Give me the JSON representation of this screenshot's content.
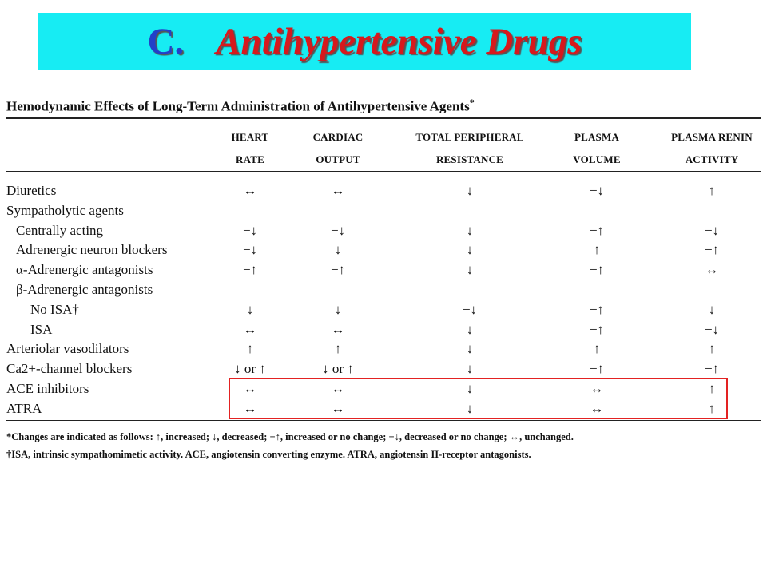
{
  "slide": {
    "title_letter": "C.",
    "title_text": "Antihypertensive Drugs"
  },
  "table": {
    "title": "Hemodynamic Effects of Long-Term Administration of Antihypertensive Agents",
    "title_mark": "*",
    "headers": [
      {
        "line1": "HEART",
        "line2": "RATE"
      },
      {
        "line1": "CARDIAC",
        "line2": "OUTPUT"
      },
      {
        "line1": "TOTAL PERIPHERAL",
        "line2": "RESISTANCE"
      },
      {
        "line1": "PLASMA",
        "line2": "VOLUME"
      },
      {
        "line1": "PLASMA RENIN",
        "line2": "ACTIVITY"
      }
    ],
    "rows": [
      {
        "label": "Diuretics",
        "values": [
          "↔",
          "↔",
          "↓",
          "−↓",
          "↑"
        ]
      },
      {
        "label": "Sympatholytic agents",
        "values": [
          "",
          "",
          "",
          "",
          ""
        ]
      },
      {
        "label": "Centrally acting",
        "values": [
          "−↓",
          "−↓",
          "↓",
          "−↑",
          "−↓"
        ]
      },
      {
        "label": "Adrenergic neuron blockers",
        "values": [
          "−↓",
          "↓",
          "↓",
          "↑",
          "−↑"
        ]
      },
      {
        "label": "α-Adrenergic antagonists",
        "values": [
          "−↑",
          "−↑",
          "↓",
          "−↑",
          "↔"
        ]
      },
      {
        "label": "β-Adrenergic antagonists",
        "values": [
          "",
          "",
          "",
          "",
          ""
        ]
      },
      {
        "label": "No ISA†",
        "values": [
          "↓",
          "↓",
          "−↓",
          "−↑",
          "↓"
        ]
      },
      {
        "label": "ISA",
        "values": [
          "↔",
          "↔",
          "↓",
          "−↑",
          "−↓"
        ]
      },
      {
        "label": "Arteriolar vasodilators",
        "values": [
          "↑",
          "↑",
          "↓",
          "↑",
          "↑"
        ]
      },
      {
        "label": "Ca2+-channel blockers",
        "values": [
          "↓ or ↑",
          "↓ or ↑",
          "↓",
          "−↑",
          "−↑"
        ]
      },
      {
        "label": "ACE inhibitors",
        "values": [
          "↔",
          "↔",
          "↓",
          "↔",
          "↑"
        ]
      },
      {
        "label": "ATRA",
        "values": [
          "↔",
          "↔",
          "↓",
          "↔",
          "↑"
        ]
      }
    ],
    "footnotes": [
      "*Changes are indicated as follows: ↑, increased; ↓, decreased; −↑, increased or no change; −↓, decreased or no change; ↔, unchanged.",
      "†ISA, intrinsic sympathomimetic activity. ACE, angiotensin converting enzyme. ATRA, angiotensin II-receptor antagonists."
    ]
  },
  "colors": {
    "title_band": "#17ecf3",
    "title_letter": "#2240c8",
    "title_text": "#d6191d",
    "highlight_box": "#e32222"
  }
}
